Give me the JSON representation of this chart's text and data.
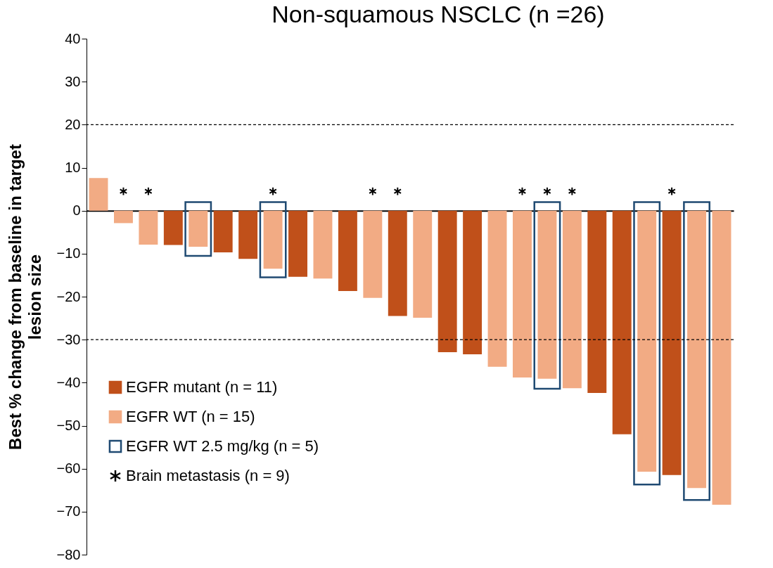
{
  "chart_data": {
    "type": "bar",
    "title": "Non-squamous NSCLC (n =26)",
    "ylabel": "Best % change from baseline in target lesion size",
    "categories": [
      null,
      null,
      null,
      null,
      null,
      null,
      null,
      null,
      null,
      null,
      null,
      null,
      null,
      null,
      null,
      null,
      null,
      null,
      null,
      null,
      null,
      null,
      null,
      null,
      null,
      null
    ],
    "series": [
      {
        "name": "EGFR mutant (n = 11)",
        "color": "#c0501a",
        "values": [
          null,
          null,
          null,
          -8,
          null,
          -9.7,
          -11.2,
          null,
          -15.4,
          null,
          -18.7,
          null,
          -24.5,
          null,
          -32.9,
          -33.4,
          null,
          null,
          null,
          null,
          -42.4,
          -52,
          null,
          -61.5,
          null,
          null
        ]
      },
      {
        "name": "EGFR WT (n = 15)",
        "color": "#f2ab84",
        "values": [
          7.6,
          -2.9,
          -7.9,
          null,
          -8.4,
          null,
          null,
          -13.5,
          null,
          -15.8,
          null,
          -20.3,
          null,
          -24.9,
          null,
          null,
          -36.3,
          -38.8,
          -39.1,
          -41.3,
          null,
          null,
          -60.7,
          null,
          -64.5,
          -68.4
        ]
      },
      {
        "name": "EGFR WT 2.5 mg/kg (n = 5)",
        "color": "#1f4a72",
        "base": [
          null,
          null,
          null,
          null,
          2,
          null,
          null,
          2,
          null,
          null,
          null,
          null,
          null,
          null,
          null,
          null,
          null,
          null,
          2,
          null,
          null,
          null,
          2,
          null,
          2,
          null
        ],
        "values": [
          null,
          null,
          null,
          null,
          -12.5,
          null,
          null,
          -17.5,
          null,
          null,
          null,
          null,
          null,
          null,
          null,
          null,
          null,
          null,
          -43.4,
          null,
          null,
          null,
          -65.7,
          null,
          -69.3,
          null
        ]
      },
      {
        "name": "Brain metastasis (n = 9)",
        "type": "scatter",
        "marker": "cross",
        "color": "#000000",
        "values": [
          null,
          4.5,
          4.5,
          null,
          null,
          null,
          null,
          4.5,
          null,
          null,
          null,
          4.5,
          4.5,
          null,
          null,
          null,
          null,
          4.5,
          4.5,
          4.5,
          null,
          null,
          null,
          4.5,
          null,
          null
        ]
      }
    ],
    "ylim": [
      -80,
      40
    ],
    "yticks": [
      -80,
      -70,
      -60,
      -50,
      -40,
      -30,
      -20,
      -10,
      0,
      10,
      20,
      30,
      40
    ],
    "ref_lines": [
      {
        "axis": "y",
        "value": 20,
        "color": "#000000",
        "line_style": "dashed"
      },
      {
        "axis": "y",
        "value": -30,
        "color": "#000000",
        "line_style": "dashed"
      }
    ],
    "tick_labels": "y",
    "grid": false,
    "legend": "bottom left"
  }
}
